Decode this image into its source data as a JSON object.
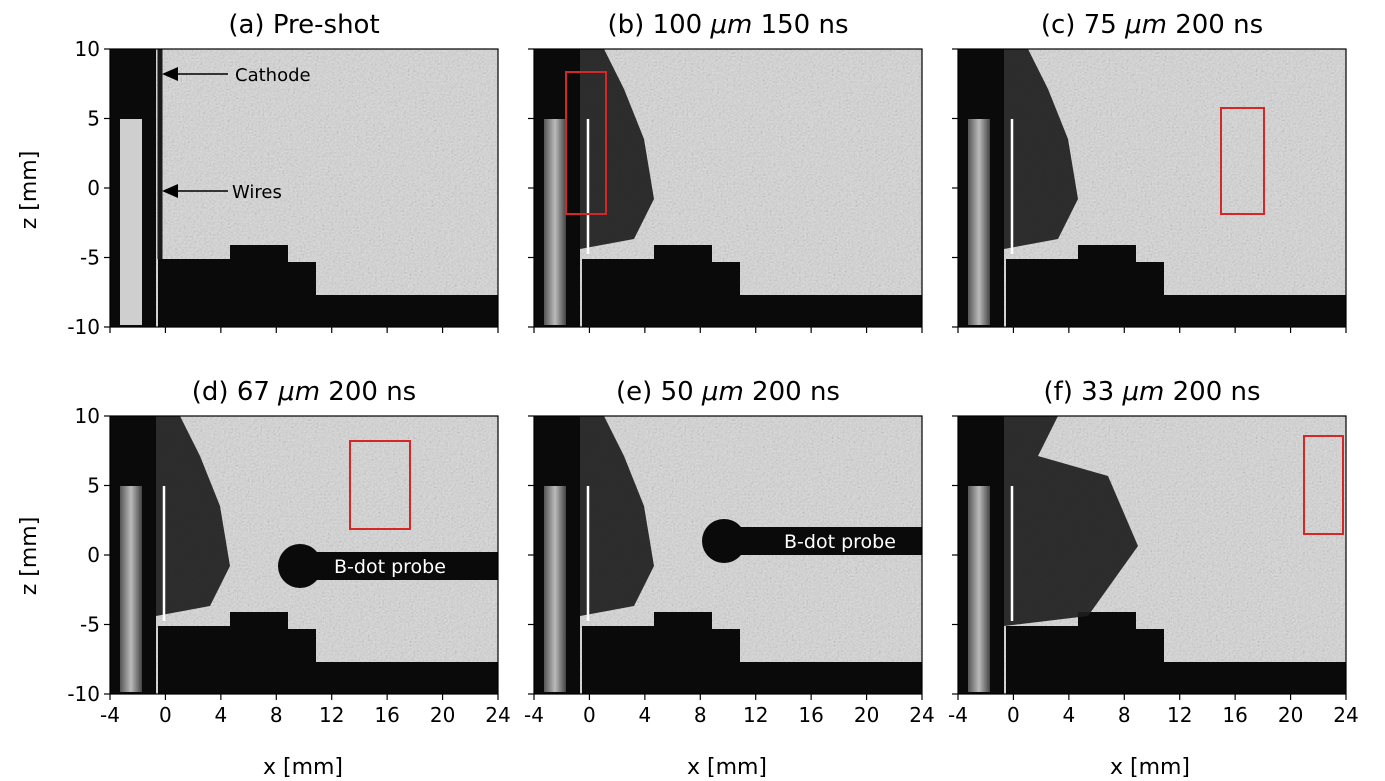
{
  "figure": {
    "ylabel": "z [mm]",
    "xlabel": "x [mm]",
    "y_ticks": [
      "10",
      "5",
      "0",
      "-5",
      "-10"
    ],
    "x_ticks": [
      "-4",
      "0",
      "4",
      "8",
      "12",
      "16",
      "20",
      "24"
    ],
    "panels": [
      {
        "title_pre": "(a) Pre-shot",
        "title_unit": "",
        "title_post": "",
        "annotations": [
          "Cathode",
          "Wires"
        ],
        "probe_label": ""
      },
      {
        "title_pre": "(b) 100 ",
        "title_unit": "μm",
        "title_post": " 150 ns",
        "annotations": [],
        "probe_label": ""
      },
      {
        "title_pre": "(c) 75 ",
        "title_unit": "μm",
        "title_post": " 200 ns",
        "annotations": [],
        "probe_label": ""
      },
      {
        "title_pre": "(d) 67 ",
        "title_unit": "μm",
        "title_post": " 200 ns",
        "annotations": [],
        "probe_label": "B-dot probe"
      },
      {
        "title_pre": "(e) 50 ",
        "title_unit": "μm",
        "title_post": " 200 ns",
        "annotations": [],
        "probe_label": "B-dot probe"
      },
      {
        "title_pre": "(f) 33 ",
        "title_unit": "μm",
        "title_post": " 200 ns",
        "annotations": [],
        "probe_label": ""
      }
    ],
    "colors": {
      "highlight_box": "#d62728",
      "axis": "#000000"
    }
  }
}
